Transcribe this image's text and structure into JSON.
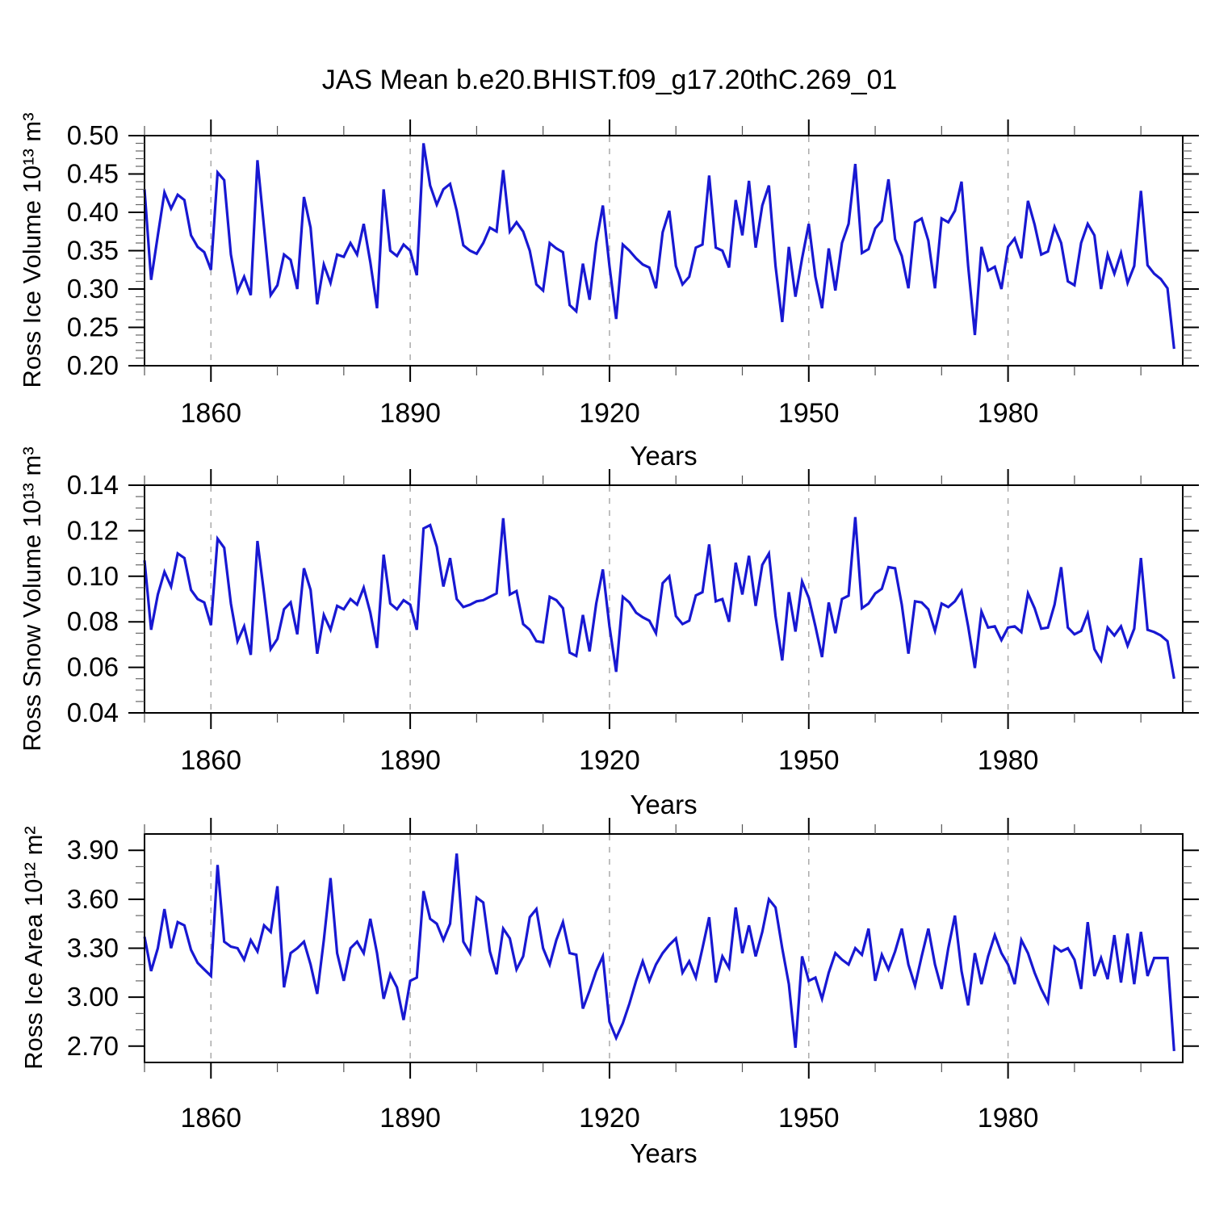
{
  "title": "JAS Mean b.e20.BHIST.f09_g17.20thC.269_01",
  "x_axis": {
    "label": "Years",
    "major_ticks": [
      1860,
      1890,
      1920,
      1950,
      1980
    ],
    "minor_step": 10,
    "range": [
      1850,
      2006.3
    ]
  },
  "line_color": "#1818d2",
  "grid_color": "#aaaaaa",
  "chart_data": [
    {
      "type": "line",
      "title": "JAS Mean b.e20.BHIST.f09_g17.20thC.269_01",
      "xlabel": "Years",
      "ylabel": "Ross Ice Volume 10¹³ m³",
      "x_start_year": 1850,
      "x_end_year": 2005,
      "ylim": [
        0.2,
        0.5
      ],
      "y_major_ticks": [
        "0.50",
        "0.45",
        "0.40",
        "0.35",
        "0.30",
        "0.25",
        "0.20"
      ],
      "y_major_values": [
        0.5,
        0.45,
        0.4,
        0.35,
        0.3,
        0.25,
        0.2
      ],
      "y_minor_step": 0.01,
      "grid": "dashed-vertical-at-major-x",
      "legend": "none",
      "values": [
        0.43,
        0.312,
        0.37,
        0.426,
        0.405,
        0.423,
        0.416,
        0.37,
        0.355,
        0.348,
        0.325,
        0.452,
        0.442,
        0.345,
        0.297,
        0.316,
        0.292,
        0.468,
        0.38,
        0.292,
        0.305,
        0.345,
        0.338,
        0.3,
        0.42,
        0.38,
        0.28,
        0.332,
        0.308,
        0.345,
        0.342,
        0.36,
        0.345,
        0.385,
        0.335,
        0.275,
        0.43,
        0.35,
        0.343,
        0.358,
        0.35,
        0.318,
        0.49,
        0.435,
        0.41,
        0.43,
        0.437,
        0.402,
        0.357,
        0.35,
        0.346,
        0.36,
        0.38,
        0.375,
        0.455,
        0.375,
        0.387,
        0.375,
        0.35,
        0.306,
        0.298,
        0.36,
        0.353,
        0.348,
        0.279,
        0.271,
        0.333,
        0.286,
        0.36,
        0.409,
        0.33,
        0.261,
        0.358,
        0.35,
        0.34,
        0.332,
        0.328,
        0.301,
        0.374,
        0.402,
        0.33,
        0.306,
        0.316,
        0.354,
        0.358,
        0.448,
        0.354,
        0.35,
        0.328,
        0.416,
        0.37,
        0.441,
        0.354,
        0.409,
        0.435,
        0.33,
        0.257,
        0.355,
        0.29,
        0.34,
        0.385,
        0.316,
        0.275,
        0.353,
        0.298,
        0.36,
        0.385,
        0.463,
        0.347,
        0.352,
        0.379,
        0.389,
        0.443,
        0.365,
        0.343,
        0.301,
        0.387,
        0.392,
        0.363,
        0.301,
        0.392,
        0.387,
        0.402,
        0.44,
        0.33,
        0.24,
        0.355,
        0.324,
        0.329,
        0.3,
        0.355,
        0.366,
        0.34,
        0.415,
        0.384,
        0.345,
        0.349,
        0.381,
        0.36,
        0.31,
        0.305,
        0.36,
        0.385,
        0.37,
        0.3,
        0.345,
        0.32,
        0.347,
        0.308,
        0.33,
        0.428,
        0.331,
        0.32,
        0.313,
        0.301,
        0.222
      ]
    },
    {
      "type": "line",
      "xlabel": "Years",
      "ylabel": "Ross Snow Volume 10¹³ m³",
      "x_start_year": 1850,
      "x_end_year": 2005,
      "ylim": [
        0.04,
        0.14
      ],
      "y_major_ticks": [
        "0.14",
        "0.12",
        "0.10",
        "0.08",
        "0.06",
        "0.04"
      ],
      "y_major_values": [
        0.14,
        0.12,
        0.1,
        0.08,
        0.06,
        0.04
      ],
      "y_minor_step": 0.005,
      "grid": "dashed-vertical-at-major-x",
      "legend": "none",
      "values": [
        0.107,
        0.0765,
        0.092,
        0.102,
        0.0955,
        0.11,
        0.108,
        0.094,
        0.09,
        0.0885,
        0.0785,
        0.1165,
        0.1125,
        0.088,
        0.0715,
        0.078,
        0.0655,
        0.1155,
        0.0925,
        0.068,
        0.0725,
        0.0855,
        0.0885,
        0.0745,
        0.1035,
        0.094,
        0.066,
        0.083,
        0.0765,
        0.087,
        0.0855,
        0.09,
        0.0875,
        0.095,
        0.084,
        0.0685,
        0.1095,
        0.088,
        0.0855,
        0.0895,
        0.0875,
        0.0765,
        0.121,
        0.1225,
        0.113,
        0.0955,
        0.108,
        0.09,
        0.0865,
        0.0875,
        0.089,
        0.0895,
        0.091,
        0.0925,
        0.1255,
        0.092,
        0.0935,
        0.079,
        0.0765,
        0.0715,
        0.071,
        0.091,
        0.0895,
        0.086,
        0.0665,
        0.065,
        0.083,
        0.067,
        0.088,
        0.103,
        0.078,
        0.058,
        0.091,
        0.0885,
        0.084,
        0.082,
        0.0805,
        0.075,
        0.097,
        0.1,
        0.0825,
        0.079,
        0.0805,
        0.0916,
        0.093,
        0.114,
        0.089,
        0.09,
        0.08,
        0.106,
        0.092,
        0.109,
        0.087,
        0.105,
        0.11,
        0.0825,
        0.063,
        0.093,
        0.0757,
        0.0977,
        0.0905,
        0.078,
        0.0645,
        0.0885,
        0.075,
        0.09,
        0.0915,
        0.126,
        0.086,
        0.088,
        0.0925,
        0.0945,
        0.104,
        0.1035,
        0.0875,
        0.066,
        0.089,
        0.0885,
        0.0855,
        0.076,
        0.088,
        0.0865,
        0.089,
        0.0935,
        0.078,
        0.0597,
        0.0845,
        0.0775,
        0.078,
        0.072,
        0.0775,
        0.078,
        0.0755,
        0.0925,
        0.086,
        0.077,
        0.0775,
        0.0875,
        0.104,
        0.0775,
        0.0745,
        0.076,
        0.0835,
        0.068,
        0.063,
        0.0775,
        0.074,
        0.078,
        0.0695,
        0.077,
        0.108,
        0.0765,
        0.0755,
        0.074,
        0.0715,
        0.055
      ]
    },
    {
      "type": "line",
      "xlabel": "Years",
      "ylabel": "Ross Ice Area 10¹² m²",
      "x_start_year": 1850,
      "x_end_year": 2005,
      "ylim": [
        2.6,
        4.0
      ],
      "y_major_ticks": [
        "3.90",
        "3.60",
        "3.30",
        "3.00",
        "2.70"
      ],
      "y_major_values": [
        3.9,
        3.6,
        3.3,
        3.0,
        2.7
      ],
      "y_minor_step": 0.1,
      "grid": "dashed-vertical-at-major-x",
      "legend": "none",
      "values": [
        3.37,
        3.16,
        3.3,
        3.54,
        3.3,
        3.46,
        3.44,
        3.29,
        3.21,
        3.17,
        3.13,
        3.81,
        3.34,
        3.31,
        3.3,
        3.23,
        3.35,
        3.28,
        3.44,
        3.4,
        3.68,
        3.06,
        3.27,
        3.3,
        3.34,
        3.2,
        3.02,
        3.35,
        3.73,
        3.27,
        3.1,
        3.3,
        3.34,
        3.27,
        3.48,
        3.27,
        2.99,
        3.14,
        3.06,
        2.86,
        3.1,
        3.12,
        3.65,
        3.48,
        3.45,
        3.35,
        3.45,
        3.88,
        3.34,
        3.27,
        3.61,
        3.58,
        3.28,
        3.14,
        3.42,
        3.36,
        3.17,
        3.25,
        3.49,
        3.54,
        3.3,
        3.2,
        3.35,
        3.46,
        3.27,
        3.26,
        2.93,
        3.04,
        3.16,
        3.25,
        2.85,
        2.75,
        2.84,
        2.96,
        3.1,
        3.22,
        3.1,
        3.2,
        3.27,
        3.32,
        3.36,
        3.15,
        3.22,
        3.12,
        3.3,
        3.49,
        3.09,
        3.25,
        3.18,
        3.55,
        3.27,
        3.44,
        3.25,
        3.4,
        3.6,
        3.55,
        3.3,
        3.08,
        2.69,
        3.25,
        3.1,
        3.12,
        2.99,
        3.15,
        3.27,
        3.23,
        3.2,
        3.3,
        3.26,
        3.42,
        3.1,
        3.26,
        3.17,
        3.28,
        3.42,
        3.2,
        3.07,
        3.25,
        3.42,
        3.2,
        3.05,
        3.3,
        3.5,
        3.16,
        2.95,
        3.27,
        3.08,
        3.25,
        3.38,
        3.27,
        3.2,
        3.08,
        3.35,
        3.27,
        3.15,
        3.05,
        2.97,
        3.31,
        3.28,
        3.3,
        3.23,
        3.05,
        3.46,
        3.13,
        3.24,
        3.11,
        3.38,
        3.09,
        3.39,
        3.08,
        3.4,
        3.13,
        3.24,
        3.24,
        3.24,
        2.67
      ]
    }
  ]
}
